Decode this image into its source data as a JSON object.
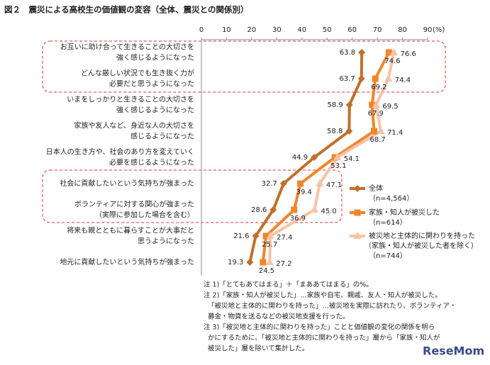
{
  "chart_data": {
    "type": "line",
    "title": "図２　震災による高校生の価値観の変容（全体、震災との関係別）",
    "x_unit": "(%)",
    "categories": [
      [
        "お互いに助け合って生きることの大切さを",
        "強く感じるようになった"
      ],
      [
        "どんな厳しい状況でも生き抜く力が",
        "必要だと思うようになった"
      ],
      [
        "いまをしっかりと生きることの大切さを",
        "強く感じるようになった"
      ],
      [
        "家族や友人など、身近な人の大切さを",
        "感じるようになった"
      ],
      [
        "日本人の生き方や、社会のあり方を変えていく",
        "必要を感じるようになった"
      ],
      [
        "社会に貢献したいという気持ちが強まった"
      ],
      [
        "ボランティアに対する関心が強まった",
        "（実際に参加した場合を含む）"
      ],
      [
        "将来も親とともに暮らすことが大事だと",
        "思うようになった"
      ],
      [
        "地元に貢献したいという気持ちが強まった"
      ]
    ],
    "series": [
      {
        "name": "全体",
        "n_label": "（n=4,564）",
        "color": "#c0702a",
        "marker": "diamond",
        "values": [
          63.8,
          63.7,
          58.9,
          58.8,
          44.9,
          32.7,
          28.6,
          21.6,
          19.3
        ],
        "value_labels": [
          "63.8",
          "63.7",
          "58.9",
          "58.8",
          "44.9",
          "32.7",
          "28.6",
          "21.6",
          "19.3"
        ]
      },
      {
        "name": "家族・知人が被災した",
        "n_label": "（n=614）",
        "color": "#f0862a",
        "marker": "square",
        "values": [
          74.6,
          69.2,
          67.9,
          68.7,
          53.1,
          39.4,
          36.9,
          25.7,
          24.5
        ],
        "value_labels": [
          "74.6",
          "69.2",
          "67.9",
          "68.7",
          "53.1",
          "39.4",
          "36.9",
          "25.7",
          "24.5"
        ]
      },
      {
        "name": "被災地と主体的に関わりを持った",
        "name_note": "（家族・知人が被災した者を除く）",
        "n_label": "（n=744）",
        "color": "#f6c3a6",
        "marker": "triangle",
        "values": [
          76.6,
          74.4,
          69.5,
          71.4,
          54.1,
          47.1,
          45.0,
          27.4,
          27.2
        ],
        "value_labels": [
          "76.6",
          "74.4",
          "69.5",
          "71.4",
          "54.1",
          "47.1",
          "45.0",
          "27.4",
          "27.2"
        ]
      }
    ],
    "xlim": [
      0,
      90
    ],
    "xticks": [
      0,
      10,
      20,
      30,
      40,
      50,
      60,
      70,
      80,
      90
    ],
    "notes": [
      "注 1)「とてもあてはまる」＋「まああてはまる」の%。",
      "注 2)「家族・知人が被災した」…家族や自宅、親戚、友人・知人が被災した。",
      "「被災地と主体的に関わりを持った」…被災地を実際に訪れたり、ボランティア・",
      "募金・物資を送るなどの被災地支援を行った。",
      "注 3)「被災地と主体的に関わりを持った」ことと価値観の変化の関係を明ら",
      "かにするために、「被災地と主体的に関わりを持った」層から「家族・知人が",
      "被災した」層を除いて集計した。"
    ],
    "watermark": "ReseMom"
  }
}
